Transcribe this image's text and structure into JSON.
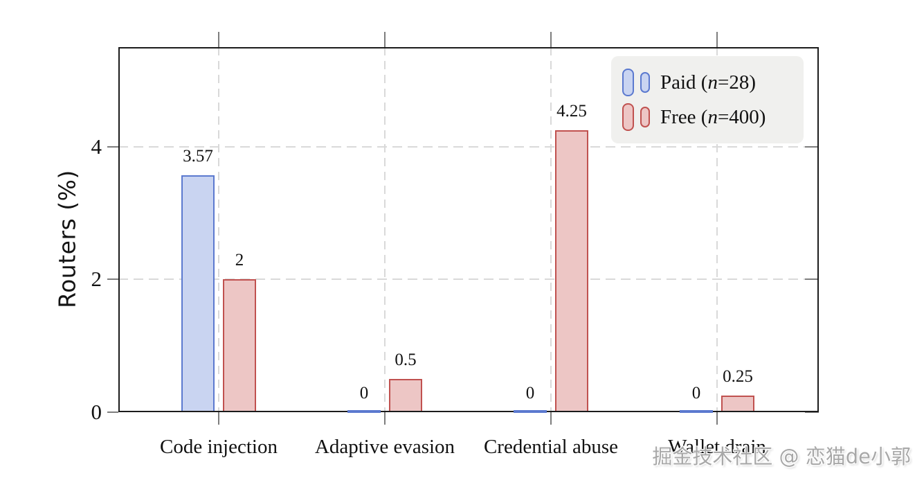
{
  "colors": {
    "axis": "#1b1b1b",
    "grid": "#d9d9d9",
    "tick": "#7d7d7d",
    "legend_bg": "#f0f0ee",
    "text": "#111111",
    "watermark": "#9e9e9e"
  },
  "chart_data": {
    "type": "bar",
    "title": "",
    "categories": [
      "Code injection",
      "Adaptive evasion",
      "Credential abuse",
      "Wallet drain"
    ],
    "series": [
      {
        "name": "Paid (n=28)",
        "values": [
          3.57,
          0,
          0,
          0
        ],
        "value_labels": [
          "3.57",
          "0",
          "0",
          "0"
        ],
        "fill": "#c9d4f1",
        "border": "#5b79cf"
      },
      {
        "name": "Free (n=400)",
        "values": [
          2,
          0.5,
          4.25,
          0.25
        ],
        "value_labels": [
          "2",
          "0.5",
          "4.25",
          "0.25"
        ],
        "fill": "#edc6c5",
        "border": "#c0514f"
      }
    ],
    "xlabel": "",
    "ylabel": "Routers (%)",
    "yticks": [
      0,
      2,
      4
    ],
    "ytick_labels": [
      "0",
      "2",
      "4"
    ],
    "ylim": [
      0,
      5.5
    ],
    "grid": true,
    "grid_style": "dashed",
    "legend_position": "top-right"
  },
  "legend": {
    "entries": [
      {
        "label": "Paid (n=28)",
        "prefix": "Paid (",
        "variable": "n",
        "suffix": "=28)"
      },
      {
        "label": "Free (n=400)",
        "prefix": "Free (",
        "variable": "n",
        "suffix": "=400)"
      }
    ]
  },
  "watermark": {
    "text": "掘金技术社区 @ 恋猫de小郭"
  }
}
